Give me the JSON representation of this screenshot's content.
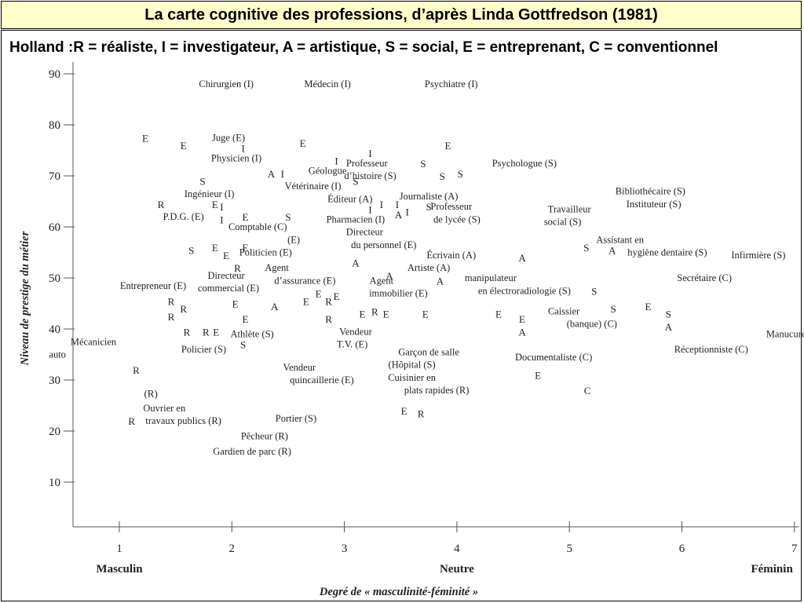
{
  "slide": {
    "title": "La carte cognitive des professions, d’après Linda Gottfredson (1981)",
    "legend": "Holland :R = réaliste, I = investigateur, A = artistique, S = social, E = entreprenant, C = conventionnel"
  },
  "chart_data": {
    "type": "scatter",
    "ylabel": "Niveau de prestige du métier",
    "xlabel": "Degré de « masculinité-féminité »",
    "x_anchor_labels": [
      "Masculin",
      "Neutre",
      "Féminin"
    ],
    "xlim": [
      0.4,
      7
    ],
    "ylim": [
      0,
      92
    ],
    "x_ticks": [
      1,
      2,
      3,
      4,
      5,
      6,
      7
    ],
    "y_ticks": [
      10,
      20,
      30,
      40,
      50,
      60,
      70,
      80,
      90
    ],
    "labels": [
      {
        "text": "Chirurgien (I)",
        "x": 1.95,
        "y": 88
      },
      {
        "text": "Médecin (I)",
        "x": 2.85,
        "y": 88
      },
      {
        "text": "Psychiatre (I)",
        "x": 3.95,
        "y": 88
      },
      {
        "text": "Juge (E)",
        "x": 1.97,
        "y": 77.5
      },
      {
        "text": "Physicien (I)",
        "x": 2.04,
        "y": 73.5
      },
      {
        "text": "Géologue",
        "x": 2.85,
        "y": 71
      },
      {
        "text": "Vétérinaire (I)",
        "x": 2.72,
        "y": 68
      },
      {
        "text": "Ingénieur (I)",
        "x": 1.8,
        "y": 66.5
      },
      {
        "text": "P.D.G. (E)",
        "x": 1.57,
        "y": 62
      },
      {
        "text": "Comptable (C)",
        "x": 2.23,
        "y": 60
      },
      {
        "text": "(E)",
        "x": 2.55,
        "y": 57.5
      },
      {
        "text": "Politicien (E)",
        "x": 2.3,
        "y": 55
      },
      {
        "text": "Professeur",
        "x": 3.2,
        "y": 72.5
      },
      {
        "text": "d’histoire (S)",
        "x": 3.23,
        "y": 70
      },
      {
        "text": "Éditeur (A)",
        "x": 3.05,
        "y": 65.5
      },
      {
        "text": "Pharmacien (I)",
        "x": 3.1,
        "y": 61.5
      },
      {
        "text": "Directeur",
        "x": 3.18,
        "y": 59
      },
      {
        "text": "du personnel (E)",
        "x": 3.35,
        "y": 56.5
      },
      {
        "text": "Journaliste (A)",
        "x": 3.75,
        "y": 66
      },
      {
        "text": "Professeur",
        "x": 3.95,
        "y": 64
      },
      {
        "text": "de lycée (S)",
        "x": 4.0,
        "y": 61.5
      },
      {
        "text": "Psychologue (S)",
        "x": 4.6,
        "y": 72.5
      },
      {
        "text": "Écrivain (A)",
        "x": 3.95,
        "y": 54.5
      },
      {
        "text": "Artiste (A)",
        "x": 3.75,
        "y": 52
      },
      {
        "text": "Agent",
        "x": 2.4,
        "y": 52
      },
      {
        "text": "d’assurance (E)",
        "x": 2.65,
        "y": 49.5
      },
      {
        "text": "Directeur",
        "x": 1.95,
        "y": 50.5
      },
      {
        "text": "commercial (E)",
        "x": 1.97,
        "y": 48
      },
      {
        "text": "Entrepreneur (E)",
        "x": 1.3,
        "y": 48.5
      },
      {
        "text": "Agent",
        "x": 3.33,
        "y": 49.5
      },
      {
        "text": "immobilier (E)",
        "x": 3.48,
        "y": 47
      },
      {
        "text": "manipulateur",
        "x": 4.3,
        "y": 50
      },
      {
        "text": "en électroradiologie (S)",
        "x": 4.6,
        "y": 47.5
      },
      {
        "text": "Travailleur",
        "x": 5.0,
        "y": 63.5
      },
      {
        "text": "social (S)",
        "x": 4.94,
        "y": 61
      },
      {
        "text": "Bibliothécaire (S)",
        "x": 5.72,
        "y": 67
      },
      {
        "text": "Instituteur (S)",
        "x": 5.75,
        "y": 64.5
      },
      {
        "text": "Assistant en",
        "x": 5.45,
        "y": 57.5
      },
      {
        "text": "hygiène dentaire (S)",
        "x": 5.87,
        "y": 55
      },
      {
        "text": "Infirmière (S)",
        "x": 6.68,
        "y": 54.5
      },
      {
        "text": "Secrétaire (C)",
        "x": 6.2,
        "y": 50
      },
      {
        "text": "Caissier",
        "x": 4.95,
        "y": 43.5
      },
      {
        "text": "(banque) (C)",
        "x": 5.2,
        "y": 41
      },
      {
        "text": "Manucure (S)",
        "x": 6.99,
        "y": 39
      },
      {
        "text": "Réceptionniste (C)",
        "x": 6.26,
        "y": 36
      },
      {
        "text": "Documentaliste (C)",
        "x": 4.86,
        "y": 34.5
      },
      {
        "text": "Mécanicien",
        "x": 0.77,
        "y": 37.5
      },
      {
        "text": "auto",
        "x": 0.45,
        "y": 35
      },
      {
        "text": "Athlète (S)",
        "x": 2.18,
        "y": 39
      },
      {
        "text": "Policier (S)",
        "x": 1.75,
        "y": 36
      },
      {
        "text": "Vendeur",
        "x": 3.1,
        "y": 39.5
      },
      {
        "text": "T.V. (E)",
        "x": 3.07,
        "y": 37
      },
      {
        "text": "Garçon de salle",
        "x": 3.75,
        "y": 35.5
      },
      {
        "text": "(Hôpital (S)",
        "x": 3.6,
        "y": 33
      },
      {
        "text": "Cuisinier en",
        "x": 3.6,
        "y": 30.5
      },
      {
        "text": "plats rapides (R)",
        "x": 3.82,
        "y": 28
      },
      {
        "text": "Vendeur",
        "x": 2.6,
        "y": 32.5
      },
      {
        "text": "quincaillerie (E)",
        "x": 2.8,
        "y": 30
      },
      {
        "text": "Ouvrier en",
        "x": 1.4,
        "y": 24.5
      },
      {
        "text": "travaux publics (R)",
        "x": 1.57,
        "y": 22
      },
      {
        "text": "Portier (S)",
        "x": 2.57,
        "y": 22.5
      },
      {
        "text": "Pêcheur (R)",
        "x": 2.29,
        "y": 19
      },
      {
        "text": "Gardien de parc (R)",
        "x": 2.18,
        "y": 16
      }
    ],
    "markers": [
      {
        "type": "E",
        "x": 1.23,
        "y": 77.5
      },
      {
        "type": "E",
        "x": 1.57,
        "y": 76
      },
      {
        "type": "I",
        "x": 2.1,
        "y": 75.5
      },
      {
        "type": "E",
        "x": 2.63,
        "y": 76.5
      },
      {
        "type": "I",
        "x": 2.93,
        "y": 73
      },
      {
        "type": "I",
        "x": 3.23,
        "y": 74.5
      },
      {
        "type": "E",
        "x": 3.92,
        "y": 76
      },
      {
        "type": "S",
        "x": 3.7,
        "y": 72.5
      },
      {
        "type": "S",
        "x": 3.87,
        "y": 70
      },
      {
        "type": "S",
        "x": 4.03,
        "y": 70.5
      },
      {
        "type": "A",
        "x": 2.35,
        "y": 70.5
      },
      {
        "type": "I",
        "x": 2.45,
        "y": 70.5
      },
      {
        "type": "S",
        "x": 3.1,
        "y": 69
      },
      {
        "type": "S",
        "x": 1.74,
        "y": 69
      },
      {
        "type": "R",
        "x": 1.37,
        "y": 64.5
      },
      {
        "type": "E",
        "x": 1.85,
        "y": 64.5
      },
      {
        "type": "I",
        "x": 1.91,
        "y": 64
      },
      {
        "type": "I",
        "x": 1.91,
        "y": 61.5
      },
      {
        "type": "E",
        "x": 2.12,
        "y": 62
      },
      {
        "type": "S",
        "x": 2.5,
        "y": 62
      },
      {
        "type": "I",
        "x": 3.23,
        "y": 63.5
      },
      {
        "type": "I",
        "x": 3.33,
        "y": 64.5
      },
      {
        "type": "I",
        "x": 3.47,
        "y": 64.5
      },
      {
        "type": "A",
        "x": 3.48,
        "y": 62.5
      },
      {
        "type": "I",
        "x": 3.56,
        "y": 63
      },
      {
        "type": "S",
        "x": 3.75,
        "y": 64
      },
      {
        "type": "S",
        "x": 1.64,
        "y": 55.5
      },
      {
        "type": "E",
        "x": 1.85,
        "y": 56
      },
      {
        "type": "E",
        "x": 1.95,
        "y": 54.5
      },
      {
        "type": "E",
        "x": 2.12,
        "y": 56
      },
      {
        "type": "R",
        "x": 2.05,
        "y": 52
      },
      {
        "type": "A",
        "x": 3.1,
        "y": 53
      },
      {
        "type": "A",
        "x": 3.4,
        "y": 50.5
      },
      {
        "type": "A",
        "x": 3.85,
        "y": 49.5
      },
      {
        "type": "A",
        "x": 4.58,
        "y": 54
      },
      {
        "type": "S",
        "x": 5.15,
        "y": 56
      },
      {
        "type": "A",
        "x": 5.38,
        "y": 55.5
      },
      {
        "type": "R",
        "x": 1.46,
        "y": 45.5
      },
      {
        "type": "R",
        "x": 1.46,
        "y": 42.5
      },
      {
        "type": "R",
        "x": 1.57,
        "y": 44
      },
      {
        "type": "E",
        "x": 2.03,
        "y": 45
      },
      {
        "type": "A",
        "x": 2.38,
        "y": 44.5
      },
      {
        "type": "E",
        "x": 2.66,
        "y": 45.5
      },
      {
        "type": "E",
        "x": 2.77,
        "y": 47
      },
      {
        "type": "R",
        "x": 2.86,
        "y": 45.5
      },
      {
        "type": "E",
        "x": 2.93,
        "y": 46.5
      },
      {
        "type": "E",
        "x": 2.12,
        "y": 42
      },
      {
        "type": "R",
        "x": 2.86,
        "y": 42
      },
      {
        "type": "E",
        "x": 3.16,
        "y": 43
      },
      {
        "type": "R",
        "x": 3.27,
        "y": 43.5
      },
      {
        "type": "E",
        "x": 3.37,
        "y": 43
      },
      {
        "type": "E",
        "x": 3.72,
        "y": 43
      },
      {
        "type": "E",
        "x": 4.37,
        "y": 43
      },
      {
        "type": "E",
        "x": 4.58,
        "y": 42
      },
      {
        "type": "A",
        "x": 4.58,
        "y": 39.5
      },
      {
        "type": "S",
        "x": 5.22,
        "y": 47.5
      },
      {
        "type": "S",
        "x": 5.39,
        "y": 44
      },
      {
        "type": "E",
        "x": 5.7,
        "y": 44.5
      },
      {
        "type": "S",
        "x": 5.88,
        "y": 43
      },
      {
        "type": "A",
        "x": 5.88,
        "y": 40.5
      },
      {
        "type": "R",
        "x": 1.6,
        "y": 39.5
      },
      {
        "type": "R",
        "x": 1.77,
        "y": 39.5
      },
      {
        "type": "E",
        "x": 1.86,
        "y": 39.5
      },
      {
        "type": "S",
        "x": 2.1,
        "y": 37
      },
      {
        "type": "R",
        "x": 1.15,
        "y": 32
      },
      {
        "type": "(R)",
        "x": 1.28,
        "y": 27.5
      },
      {
        "type": "E",
        "x": 4.72,
        "y": 31
      },
      {
        "type": "C",
        "x": 5.16,
        "y": 28
      },
      {
        "type": "E",
        "x": 3.53,
        "y": 24
      },
      {
        "type": "R",
        "x": 3.68,
        "y": 23.5
      },
      {
        "type": "R",
        "x": 1.11,
        "y": 22
      }
    ]
  }
}
